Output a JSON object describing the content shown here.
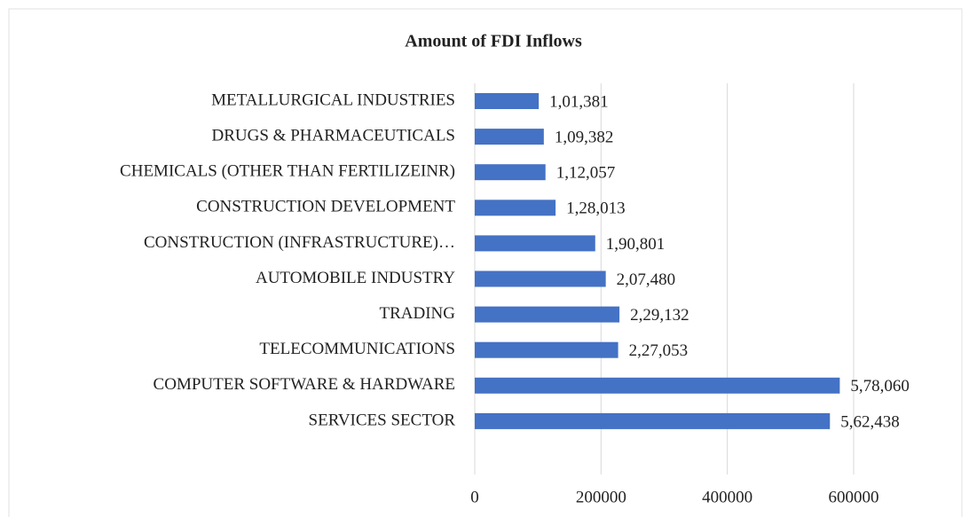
{
  "chart_data": {
    "type": "bar",
    "orientation": "horizontal",
    "title": "Amount  of FDI Inflows",
    "categories": [
      "METALLURGICAL INDUSTRIES",
      "DRUGS & PHARMACEUTICALS",
      "CHEMICALS (OTHER THAN FERTILIZEINR)",
      "CONSTRUCTION DEVELOPMENT",
      "CONSTRUCTION (INFRASTRUCTURE)…",
      "AUTOMOBILE INDUSTRY",
      "TRADING",
      "TELECOMMUNICATIONS",
      "COMPUTER SOFTWARE & HARDWARE",
      "SERVICES SECTOR"
    ],
    "values": [
      101381,
      109382,
      112057,
      128013,
      190801,
      207480,
      229132,
      227053,
      578060,
      562438
    ],
    "value_labels": [
      "1,01,381",
      "1,09,382",
      "1,12,057",
      "1,28,013",
      "1,90,801",
      "2,07,480",
      "2,29,132",
      "2,27,053",
      "5,78,060",
      "5,62,438"
    ],
    "color": "#4472c4",
    "xlim": [
      0,
      600000
    ],
    "xticks": [
      0,
      200000,
      400000,
      600000
    ],
    "grid": true
  }
}
